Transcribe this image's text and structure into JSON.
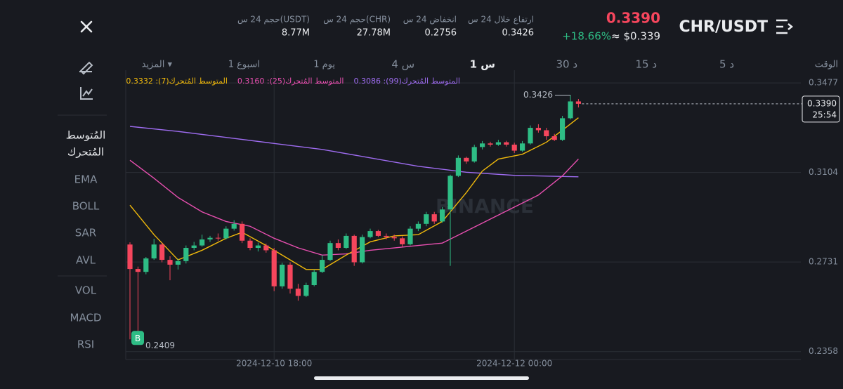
{
  "header": {
    "pair": "CHR/USDT",
    "price": "0.3390",
    "change": "+18.66%",
    "approx": "≈ $0.339",
    "stats": [
      {
        "label": "ارتفاع خلال 24 س",
        "value": "0.3426"
      },
      {
        "label": "انخفاض 24 س",
        "value": "0.2756"
      },
      {
        "label": "حجم 24 س(CHR)",
        "value": "27.78M"
      },
      {
        "label": "حجم 24 س(USDT)",
        "value": "8.77M"
      }
    ]
  },
  "timeframes": [
    "الوقت",
    "5 د",
    "15 د",
    "30 د",
    "1 س",
    "4 س",
    "1 يوم",
    "1 اسبوع",
    "المزيد ▾"
  ],
  "sidebar": {
    "indicator_title": [
      "المُتوسط",
      "المُتحرك"
    ],
    "main": [
      "EMA",
      "BOLL",
      "SAR",
      "AVL"
    ],
    "sub": [
      "VOL",
      "MACD",
      "RSI"
    ]
  },
  "chart_data": {
    "type": "candlestick",
    "x": [
      "2024-12-10 00:00",
      "2024-12-10 01:00",
      "2024-12-10 02:00",
      "2024-12-10 03:00",
      "2024-12-10 04:00",
      "2024-12-10 05:00",
      "2024-12-10 06:00",
      "2024-12-10 07:00",
      "2024-12-10 08:00",
      "2024-12-10 09:00",
      "2024-12-10 10:00",
      "2024-12-10 11:00",
      "2024-12-10 12:00",
      "2024-12-10 13:00",
      "2024-12-10 14:00",
      "2024-12-10 15:00",
      "2024-12-10 16:00",
      "2024-12-10 17:00",
      "2024-12-10 18:00",
      "2024-12-10 19:00",
      "2024-12-10 20:00",
      "2024-12-10 21:00",
      "2024-12-10 22:00",
      "2024-12-10 23:00",
      "2024-12-11 00:00",
      "2024-12-11 01:00",
      "2024-12-11 02:00",
      "2024-12-11 03:00",
      "2024-12-11 04:00",
      "2024-12-11 05:00",
      "2024-12-11 06:00",
      "2024-12-11 07:00",
      "2024-12-11 08:00",
      "2024-12-11 09:00",
      "2024-12-11 10:00",
      "2024-12-11 11:00",
      "2024-12-11 12:00",
      "2024-12-11 13:00",
      "2024-12-11 14:00",
      "2024-12-11 15:00",
      "2024-12-11 16:00",
      "2024-12-11 17:00",
      "2024-12-11 18:00",
      "2024-12-11 19:00",
      "2024-12-11 20:00",
      "2024-12-11 21:00",
      "2024-12-11 22:00",
      "2024-12-11 23:00",
      "2024-12-12 00:00",
      "2024-12-12 01:00",
      "2024-12-12 02:00",
      "2024-12-12 03:00",
      "2024-12-12 04:00",
      "2024-12-12 05:00",
      "2024-12-12 06:00",
      "2024-12-12 07:00",
      "2024-12-12 08:00"
    ],
    "open": [
      0.2804,
      0.2702,
      0.269,
      0.2746,
      0.2804,
      0.274,
      0.272,
      0.2735,
      0.279,
      0.28,
      0.2825,
      0.2832,
      0.283,
      0.287,
      0.289,
      0.282,
      0.279,
      0.28,
      0.278,
      0.263,
      0.272,
      0.262,
      0.259,
      0.2635,
      0.269,
      0.274,
      0.281,
      0.279,
      0.284,
      0.273,
      0.2835,
      0.286,
      0.284,
      0.2835,
      0.283,
      0.2805,
      0.287,
      0.289,
      0.293,
      0.29,
      0.295,
      0.309,
      0.3165,
      0.315,
      0.321,
      0.3225,
      0.322,
      0.323,
      0.322,
      0.3195,
      0.3225,
      0.329,
      0.328,
      0.3255,
      0.324,
      0.333,
      0.34
    ],
    "high": [
      0.2813,
      0.2712,
      0.2752,
      0.2828,
      0.2812,
      0.2755,
      0.2745,
      0.28,
      0.2815,
      0.2845,
      0.284,
      0.285,
      0.288,
      0.2905,
      0.29,
      0.283,
      0.2812,
      0.2808,
      0.279,
      0.2728,
      0.273,
      0.264,
      0.2645,
      0.27,
      0.276,
      0.282,
      0.2825,
      0.285,
      0.2845,
      0.2845,
      0.287,
      0.2865,
      0.285,
      0.2845,
      0.2838,
      0.288,
      0.29,
      0.294,
      0.294,
      0.296,
      0.3095,
      0.3175,
      0.317,
      0.322,
      0.3235,
      0.3232,
      0.324,
      0.3236,
      0.3228,
      0.3235,
      0.33,
      0.3305,
      0.329,
      0.3265,
      0.334,
      0.3426,
      0.341
    ],
    "low": [
      0.2409,
      0.244,
      0.268,
      0.274,
      0.273,
      0.2655,
      0.27,
      0.2725,
      0.278,
      0.2795,
      0.2815,
      0.282,
      0.2825,
      0.2862,
      0.281,
      0.278,
      0.2775,
      0.277,
      0.261,
      0.262,
      0.26,
      0.257,
      0.2585,
      0.263,
      0.2685,
      0.2735,
      0.278,
      0.2785,
      0.2715,
      0.2725,
      0.283,
      0.2835,
      0.2825,
      0.282,
      0.2795,
      0.28,
      0.286,
      0.288,
      0.289,
      0.2895,
      0.2715,
      0.3085,
      0.314,
      0.3145,
      0.32,
      0.3212,
      0.3215,
      0.3212,
      0.3185,
      0.319,
      0.322,
      0.327,
      0.324,
      0.3235,
      0.3235,
      0.3325,
      0.3375
    ],
    "close": [
      0.2702,
      0.269,
      0.2746,
      0.2804,
      0.274,
      0.272,
      0.2735,
      0.279,
      0.28,
      0.2825,
      0.2832,
      0.283,
      0.287,
      0.289,
      0.282,
      0.279,
      0.28,
      0.278,
      0.263,
      0.272,
      0.262,
      0.259,
      0.2635,
      0.269,
      0.274,
      0.281,
      0.279,
      0.284,
      0.273,
      0.2835,
      0.286,
      0.284,
      0.2835,
      0.283,
      0.2805,
      0.287,
      0.289,
      0.293,
      0.29,
      0.295,
      0.309,
      0.3165,
      0.315,
      0.321,
      0.3225,
      0.322,
      0.323,
      0.322,
      0.3195,
      0.3225,
      0.329,
      0.328,
      0.3255,
      0.324,
      0.333,
      0.34,
      0.339
    ],
    "up_color": "#2ebd85",
    "down_color": "#f6465d",
    "series": [
      {
        "name": "المتوسط المُتحرك(99): 0.3086",
        "color": "#9e6cf0",
        "x": [
          "2024-12-10 00:00",
          "2024-12-10 06:00",
          "2024-12-10 12:00",
          "2024-12-10 18:00",
          "2024-12-11 00:00",
          "2024-12-11 06:00",
          "2024-12-11 12:00",
          "2024-12-11 18:00",
          "2024-12-12 00:00",
          "2024-12-12 08:00"
        ],
        "values": [
          0.3296,
          0.3275,
          0.325,
          0.3225,
          0.32,
          0.3165,
          0.313,
          0.3105,
          0.3092,
          0.3086
        ]
      },
      {
        "name": "المتوسط المُتحرك(25): 0.3160",
        "color": "#e84fb0",
        "x": [
          "2024-12-10 00:00",
          "2024-12-10 03:00",
          "2024-12-10 06:00",
          "2024-12-10 09:00",
          "2024-12-10 12:00",
          "2024-12-10 15:00",
          "2024-12-10 18:00",
          "2024-12-10 21:00",
          "2024-12-11 00:00",
          "2024-12-11 03:00",
          "2024-12-11 06:00",
          "2024-12-11 09:00",
          "2024-12-11 12:00",
          "2024-12-11 15:00",
          "2024-12-11 18:00",
          "2024-12-11 21:00",
          "2024-12-12 00:00",
          "2024-12-12 03:00",
          "2024-12-12 06:00",
          "2024-12-12 08:00"
        ],
        "values": [
          0.3155,
          0.308,
          0.3,
          0.294,
          0.29,
          0.288,
          0.283,
          0.279,
          0.276,
          0.2765,
          0.278,
          0.279,
          0.28,
          0.281,
          0.286,
          0.291,
          0.296,
          0.301,
          0.309,
          0.316
        ]
      },
      {
        "name": "المتوسط المُتحرك(7): 0.3332",
        "color": "#f0b90b",
        "x": [
          "2024-12-10 00:00",
          "2024-12-10 03:00",
          "2024-12-10 06:00",
          "2024-12-10 09:00",
          "2024-12-10 12:00",
          "2024-12-10 14:00",
          "2024-12-10 17:00",
          "2024-12-10 20:00",
          "2024-12-10 22:00",
          "2024-12-11 00:00",
          "2024-12-11 03:00",
          "2024-12-11 06:00",
          "2024-12-11 09:00",
          "2024-12-11 12:00",
          "2024-12-11 15:00",
          "2024-12-11 18:00",
          "2024-12-11 20:00",
          "2024-12-11 22:00",
          "2024-12-12 01:00",
          "2024-12-12 04:00",
          "2024-12-12 06:00",
          "2024-12-12 08:00"
        ],
        "values": [
          0.2968,
          0.2845,
          0.274,
          0.278,
          0.283,
          0.2855,
          0.28,
          0.274,
          0.27,
          0.27,
          0.276,
          0.2815,
          0.284,
          0.2845,
          0.29,
          0.302,
          0.311,
          0.316,
          0.318,
          0.323,
          0.328,
          0.3332
        ]
      }
    ],
    "ylim": [
      0.2325,
      0.353
    ],
    "yticks": [
      0.3477,
      0.3104,
      0.2731,
      0.2358
    ],
    "xticks": [
      "2024-12-10 18:00",
      "2024-12-12 00:00"
    ],
    "grid": true,
    "max_marker": {
      "x": "2024-12-12 07:00",
      "value": 0.3426
    },
    "min_marker": {
      "x": "2024-12-10 00:00",
      "value": 0.2409
    },
    "last_price": {
      "value": 0.339,
      "label": "0.3390"
    },
    "countdown": "25:54",
    "watermark": "BINANCE",
    "buy_marker": "B"
  }
}
